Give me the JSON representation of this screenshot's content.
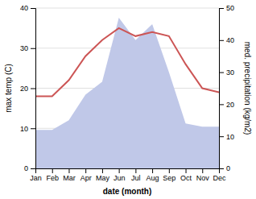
{
  "chart_data": {
    "type": "line",
    "categories": [
      "Jan",
      "Feb",
      "Mar",
      "Apr",
      "May",
      "Jun",
      "Jul",
      "Aug",
      "Sep",
      "Oct",
      "Nov",
      "Dec"
    ],
    "series": [
      {
        "type": "area",
        "color": "#c0c8e8",
        "axis": "y2",
        "values": [
          12,
          12,
          15,
          23,
          27,
          47,
          40,
          45,
          30,
          14,
          13,
          13
        ]
      },
      {
        "type": "line",
        "color": "#cc5555",
        "values": [
          18,
          18,
          22,
          28,
          32,
          35,
          33,
          34,
          33,
          26,
          20,
          19
        ]
      }
    ],
    "xlabel": "date (month)",
    "ylabel": "max temp (C)",
    "y2label": "med. precipitation (kg/m2)",
    "ylim": [
      0,
      40
    ],
    "yticks": [
      0,
      10,
      20,
      30,
      40
    ],
    "y2lim": [
      0,
      50
    ],
    "y2ticks": [
      0,
      10,
      20,
      30,
      40,
      50
    ],
    "grid": true
  }
}
